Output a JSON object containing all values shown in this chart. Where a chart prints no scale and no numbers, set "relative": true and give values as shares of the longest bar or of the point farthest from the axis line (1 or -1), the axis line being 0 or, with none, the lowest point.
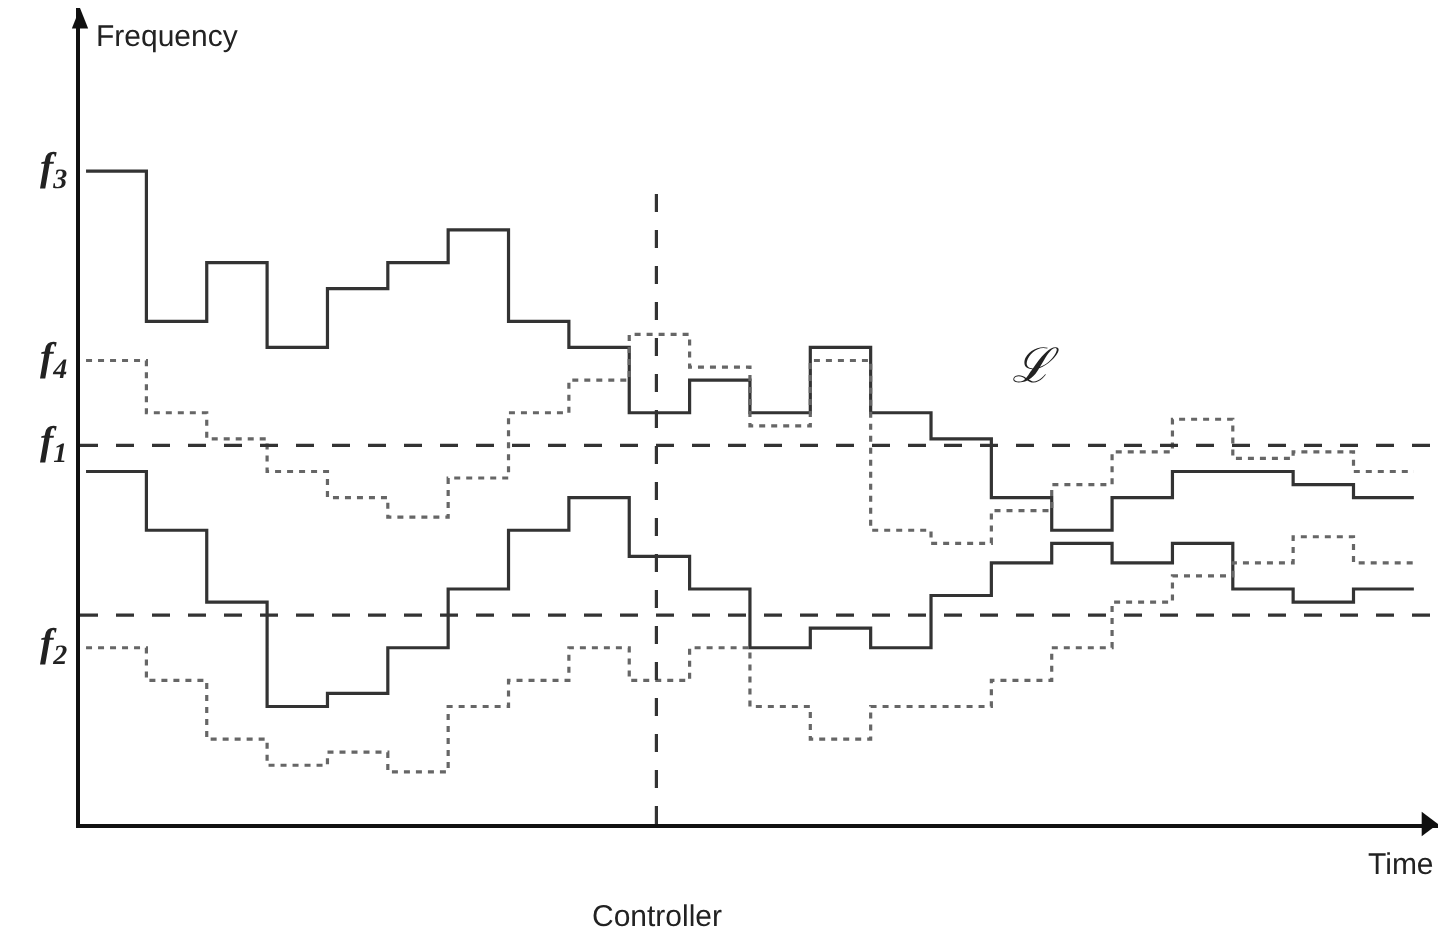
{
  "chart_data": {
    "type": "step",
    "xlabel": "Time",
    "ylabel": "Frequency",
    "categories": [
      null,
      null,
      null,
      null,
      null,
      null,
      null,
      null,
      null,
      null,
      null,
      null,
      null,
      null,
      null,
      null,
      null,
      null,
      null,
      null,
      null,
      null,
      null
    ],
    "relative": true,
    "marker": "none",
    "series": [
      {
        "color": "#333333",
        "line_style": "solid",
        "values": [
          1.0,
          0.77,
          0.86,
          0.73,
          0.82,
          0.86,
          0.91,
          0.77,
          0.73,
          0.63,
          0.68,
          0.63,
          0.73,
          0.63,
          0.59,
          0.5,
          0.45,
          0.5,
          0.54,
          0.54,
          0.52,
          0.5,
          0.5
        ]
      },
      {
        "color": "#666666",
        "line_style": "dotted",
        "values": [
          0.71,
          0.63,
          0.59,
          0.54,
          0.5,
          0.47,
          0.53,
          0.63,
          0.68,
          0.75,
          0.7,
          0.61,
          0.71,
          0.45,
          0.43,
          0.48,
          0.52,
          0.57,
          0.62,
          0.56,
          0.57,
          0.54,
          0.54
        ]
      },
      {
        "color": "#333333",
        "line_style": "solid",
        "values": [
          0.54,
          0.45,
          0.34,
          0.18,
          0.2,
          0.27,
          0.36,
          0.45,
          0.5,
          0.41,
          0.36,
          0.27,
          0.3,
          0.27,
          0.35,
          0.4,
          0.43,
          0.4,
          0.43,
          0.36,
          0.34,
          0.36,
          0.36
        ]
      },
      {
        "color": "#666666",
        "line_style": "dotted",
        "values": [
          0.27,
          0.22,
          0.13,
          0.09,
          0.11,
          0.08,
          0.18,
          0.22,
          0.27,
          0.22,
          0.27,
          0.18,
          0.13,
          0.18,
          0.18,
          0.22,
          0.27,
          0.34,
          0.38,
          0.4,
          0.44,
          0.4,
          0.4
        ]
      }
    ],
    "ref_lines": [
      {
        "axis": "y",
        "value": 0.58,
        "color": "#333333",
        "line_style": "dashed"
      },
      {
        "axis": "y",
        "value": 0.32,
        "color": "#333333",
        "line_style": "dashed"
      }
    ],
    "annotations": [
      "f$_{3}$",
      "f$_{4}$",
      "f$_{1}$",
      "f$_{2}$",
      "ℒ",
      "Controller"
    ]
  }
}
